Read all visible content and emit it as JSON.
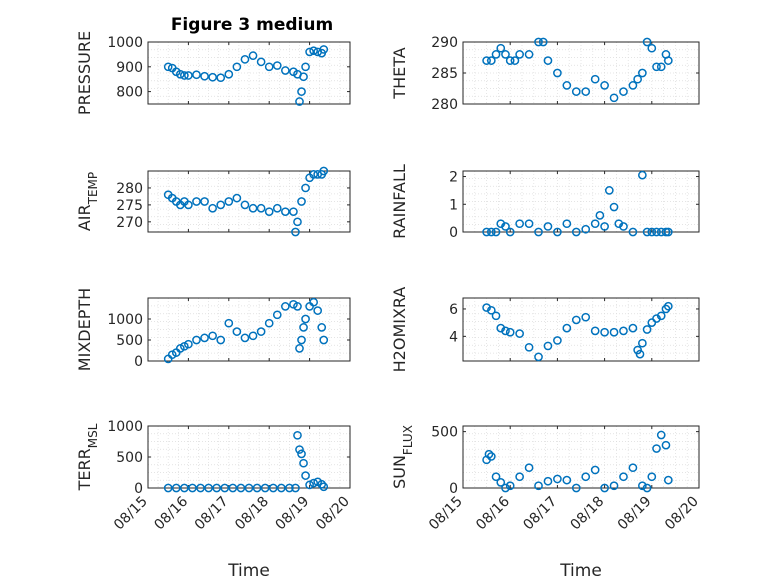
{
  "figure_title": "Figure 3 medium",
  "chart_data": [
    {
      "type": "scatter",
      "ylabel": "PRESSURE",
      "title": "Figure 3 medium",
      "xlim": [
        0,
        5
      ],
      "ylim": [
        750,
        1000
      ],
      "yticks": [
        800,
        900,
        1000
      ],
      "x": [
        0.5,
        0.6,
        0.7,
        0.8,
        0.9,
        1.0,
        1.2,
        1.4,
        1.6,
        1.8,
        2.0,
        2.2,
        2.4,
        2.6,
        2.8,
        3.0,
        3.2,
        3.4,
        3.6,
        3.7,
        3.75,
        3.8,
        3.85,
        3.9,
        4.0,
        4.1,
        4.2,
        4.3,
        4.35
      ],
      "y": [
        900,
        895,
        880,
        870,
        865,
        865,
        868,
        862,
        858,
        856,
        870,
        900,
        930,
        945,
        920,
        900,
        905,
        885,
        880,
        870,
        760,
        800,
        860,
        900,
        960,
        965,
        960,
        955,
        970
      ]
    },
    {
      "type": "scatter",
      "ylabel": "THETA",
      "xlim": [
        0,
        5
      ],
      "ylim": [
        280,
        290
      ],
      "yticks": [
        280,
        285,
        290
      ],
      "x": [
        0.5,
        0.6,
        0.7,
        0.8,
        0.9,
        1.0,
        1.1,
        1.2,
        1.4,
        1.6,
        1.7,
        1.8,
        2.0,
        2.2,
        2.4,
        2.6,
        2.8,
        3.0,
        3.2,
        3.4,
        3.6,
        3.7,
        3.8,
        3.9,
        4.0,
        4.1,
        4.2,
        4.3,
        4.35
      ],
      "y": [
        287,
        287,
        288,
        289,
        288,
        287,
        287,
        288,
        288,
        290,
        290,
        287,
        285,
        283,
        282,
        282,
        284,
        283,
        281,
        282,
        283,
        284,
        285,
        290,
        289,
        286,
        286,
        288,
        287
      ]
    },
    {
      "type": "scatter",
      "ylabel": "AIR_TEMP",
      "xlim": [
        0,
        5
      ],
      "ylim": [
        267,
        285
      ],
      "yticks": [
        270,
        275,
        280
      ],
      "x": [
        0.5,
        0.6,
        0.7,
        0.8,
        0.9,
        1.0,
        1.2,
        1.4,
        1.6,
        1.8,
        2.0,
        2.2,
        2.4,
        2.6,
        2.8,
        3.0,
        3.2,
        3.4,
        3.6,
        3.65,
        3.7,
        3.8,
        3.9,
        4.0,
        4.1,
        4.2,
        4.3,
        4.35
      ],
      "y": [
        278,
        277,
        276,
        275,
        276,
        275,
        276,
        276,
        274,
        275,
        276,
        277,
        275,
        274,
        274,
        273,
        274,
        273,
        273,
        267,
        270,
        276,
        280,
        283,
        284,
        284,
        284,
        285
      ]
    },
    {
      "type": "scatter",
      "ylabel": "MIXDEPTH",
      "xlim": [
        0,
        5
      ],
      "ylim": [
        0,
        1500
      ],
      "yticks": [
        0,
        500,
        1000
      ],
      "x": [
        0.5,
        0.6,
        0.7,
        0.8,
        0.9,
        1.0,
        1.2,
        1.4,
        1.6,
        1.8,
        2.0,
        2.2,
        2.4,
        2.6,
        2.8,
        3.0,
        3.2,
        3.4,
        3.6,
        3.7,
        3.75,
        3.8,
        3.85,
        3.9,
        4.0,
        4.1,
        4.2,
        4.3,
        4.35
      ],
      "y": [
        50,
        150,
        200,
        300,
        350,
        400,
        500,
        550,
        600,
        500,
        900,
        700,
        550,
        600,
        700,
        900,
        1100,
        1300,
        1350,
        1300,
        300,
        500,
        800,
        1000,
        1300,
        1400,
        1200,
        800,
        500
      ]
    },
    {
      "type": "scatter",
      "ylabel": "H2OMIXRA",
      "xlim": [
        0,
        5
      ],
      "ylim": [
        2.2,
        6.8
      ],
      "yticks": [
        4,
        6
      ],
      "x": [
        0.5,
        0.6,
        0.7,
        0.8,
        0.9,
        1.0,
        1.2,
        1.4,
        1.6,
        1.8,
        2.0,
        2.2,
        2.4,
        2.6,
        2.8,
        3.0,
        3.2,
        3.4,
        3.6,
        3.7,
        3.75,
        3.8,
        3.9,
        4.0,
        4.1,
        4.2,
        4.3,
        4.35
      ],
      "y": [
        6.1,
        5.9,
        5.5,
        4.6,
        4.4,
        4.3,
        4.2,
        3.2,
        2.5,
        3.3,
        3.7,
        4.6,
        5.2,
        5.4,
        4.4,
        4.3,
        4.3,
        4.4,
        4.6,
        3.0,
        2.7,
        3.5,
        4.5,
        5.0,
        5.3,
        5.5,
        6.0,
        6.2
      ]
    },
    {
      "type": "scatter",
      "ylabel": "RAINFALL",
      "xlim": [
        0,
        5
      ],
      "ylim": [
        0,
        2.2
      ],
      "yticks": [
        0,
        1,
        2
      ],
      "x": [
        0.5,
        0.6,
        0.7,
        0.8,
        0.9,
        1.0,
        1.2,
        1.4,
        1.6,
        1.8,
        2.0,
        2.2,
        2.4,
        2.6,
        2.8,
        2.9,
        3.0,
        3.1,
        3.2,
        3.3,
        3.4,
        3.6,
        3.8,
        3.9,
        4.0,
        4.1,
        4.2,
        4.3,
        4.35
      ],
      "y": [
        0,
        0,
        0,
        0.3,
        0.2,
        0,
        0.3,
        0.3,
        0,
        0.2,
        0,
        0.3,
        0,
        0.1,
        0.3,
        0.6,
        0.2,
        1.5,
        0.9,
        0.3,
        0.2,
        0,
        2.05,
        0,
        0,
        0,
        0,
        0,
        0
      ]
    },
    {
      "type": "scatter",
      "ylabel": "TERR_MSL",
      "xlabel": "Time",
      "xlim": [
        0,
        5
      ],
      "ylim": [
        0,
        1000
      ],
      "yticks": [
        0,
        500,
        1000
      ],
      "x": [
        0.5,
        0.7,
        0.9,
        1.1,
        1.3,
        1.5,
        1.7,
        1.9,
        2.1,
        2.3,
        2.5,
        2.7,
        2.9,
        3.1,
        3.3,
        3.5,
        3.65,
        3.7,
        3.75,
        3.8,
        3.85,
        3.9,
        4.0,
        4.1,
        4.2,
        4.3,
        4.35
      ],
      "y": [
        0,
        0,
        0,
        0,
        0,
        0,
        0,
        0,
        0,
        0,
        0,
        0,
        0,
        0,
        0,
        0,
        0,
        850,
        620,
        550,
        400,
        200,
        50,
        80,
        100,
        60,
        20
      ]
    },
    {
      "type": "scatter",
      "ylabel": "SUN_FLUX",
      "xlabel": "Time",
      "xlim": [
        0,
        5
      ],
      "ylim": [
        0,
        550
      ],
      "yticks": [
        0,
        500
      ],
      "x": [
        0.5,
        0.55,
        0.6,
        0.7,
        0.8,
        0.9,
        1.0,
        1.2,
        1.4,
        1.6,
        1.8,
        2.0,
        2.2,
        2.4,
        2.6,
        2.8,
        3.0,
        3.2,
        3.4,
        3.6,
        3.8,
        3.9,
        4.0,
        4.1,
        4.2,
        4.3,
        4.35
      ],
      "y": [
        250,
        300,
        280,
        100,
        50,
        0,
        20,
        100,
        180,
        20,
        60,
        80,
        70,
        0,
        100,
        160,
        0,
        20,
        100,
        180,
        20,
        0,
        100,
        350,
        470,
        380,
        70
      ]
    }
  ],
  "xticklabels": [
    "08/15",
    "08/16",
    "08/17",
    "08/18",
    "08/19",
    "08/20"
  ],
  "colors": {
    "marker": "#0072BD",
    "axes": "#262626",
    "grid": "#dcdcdc"
  }
}
